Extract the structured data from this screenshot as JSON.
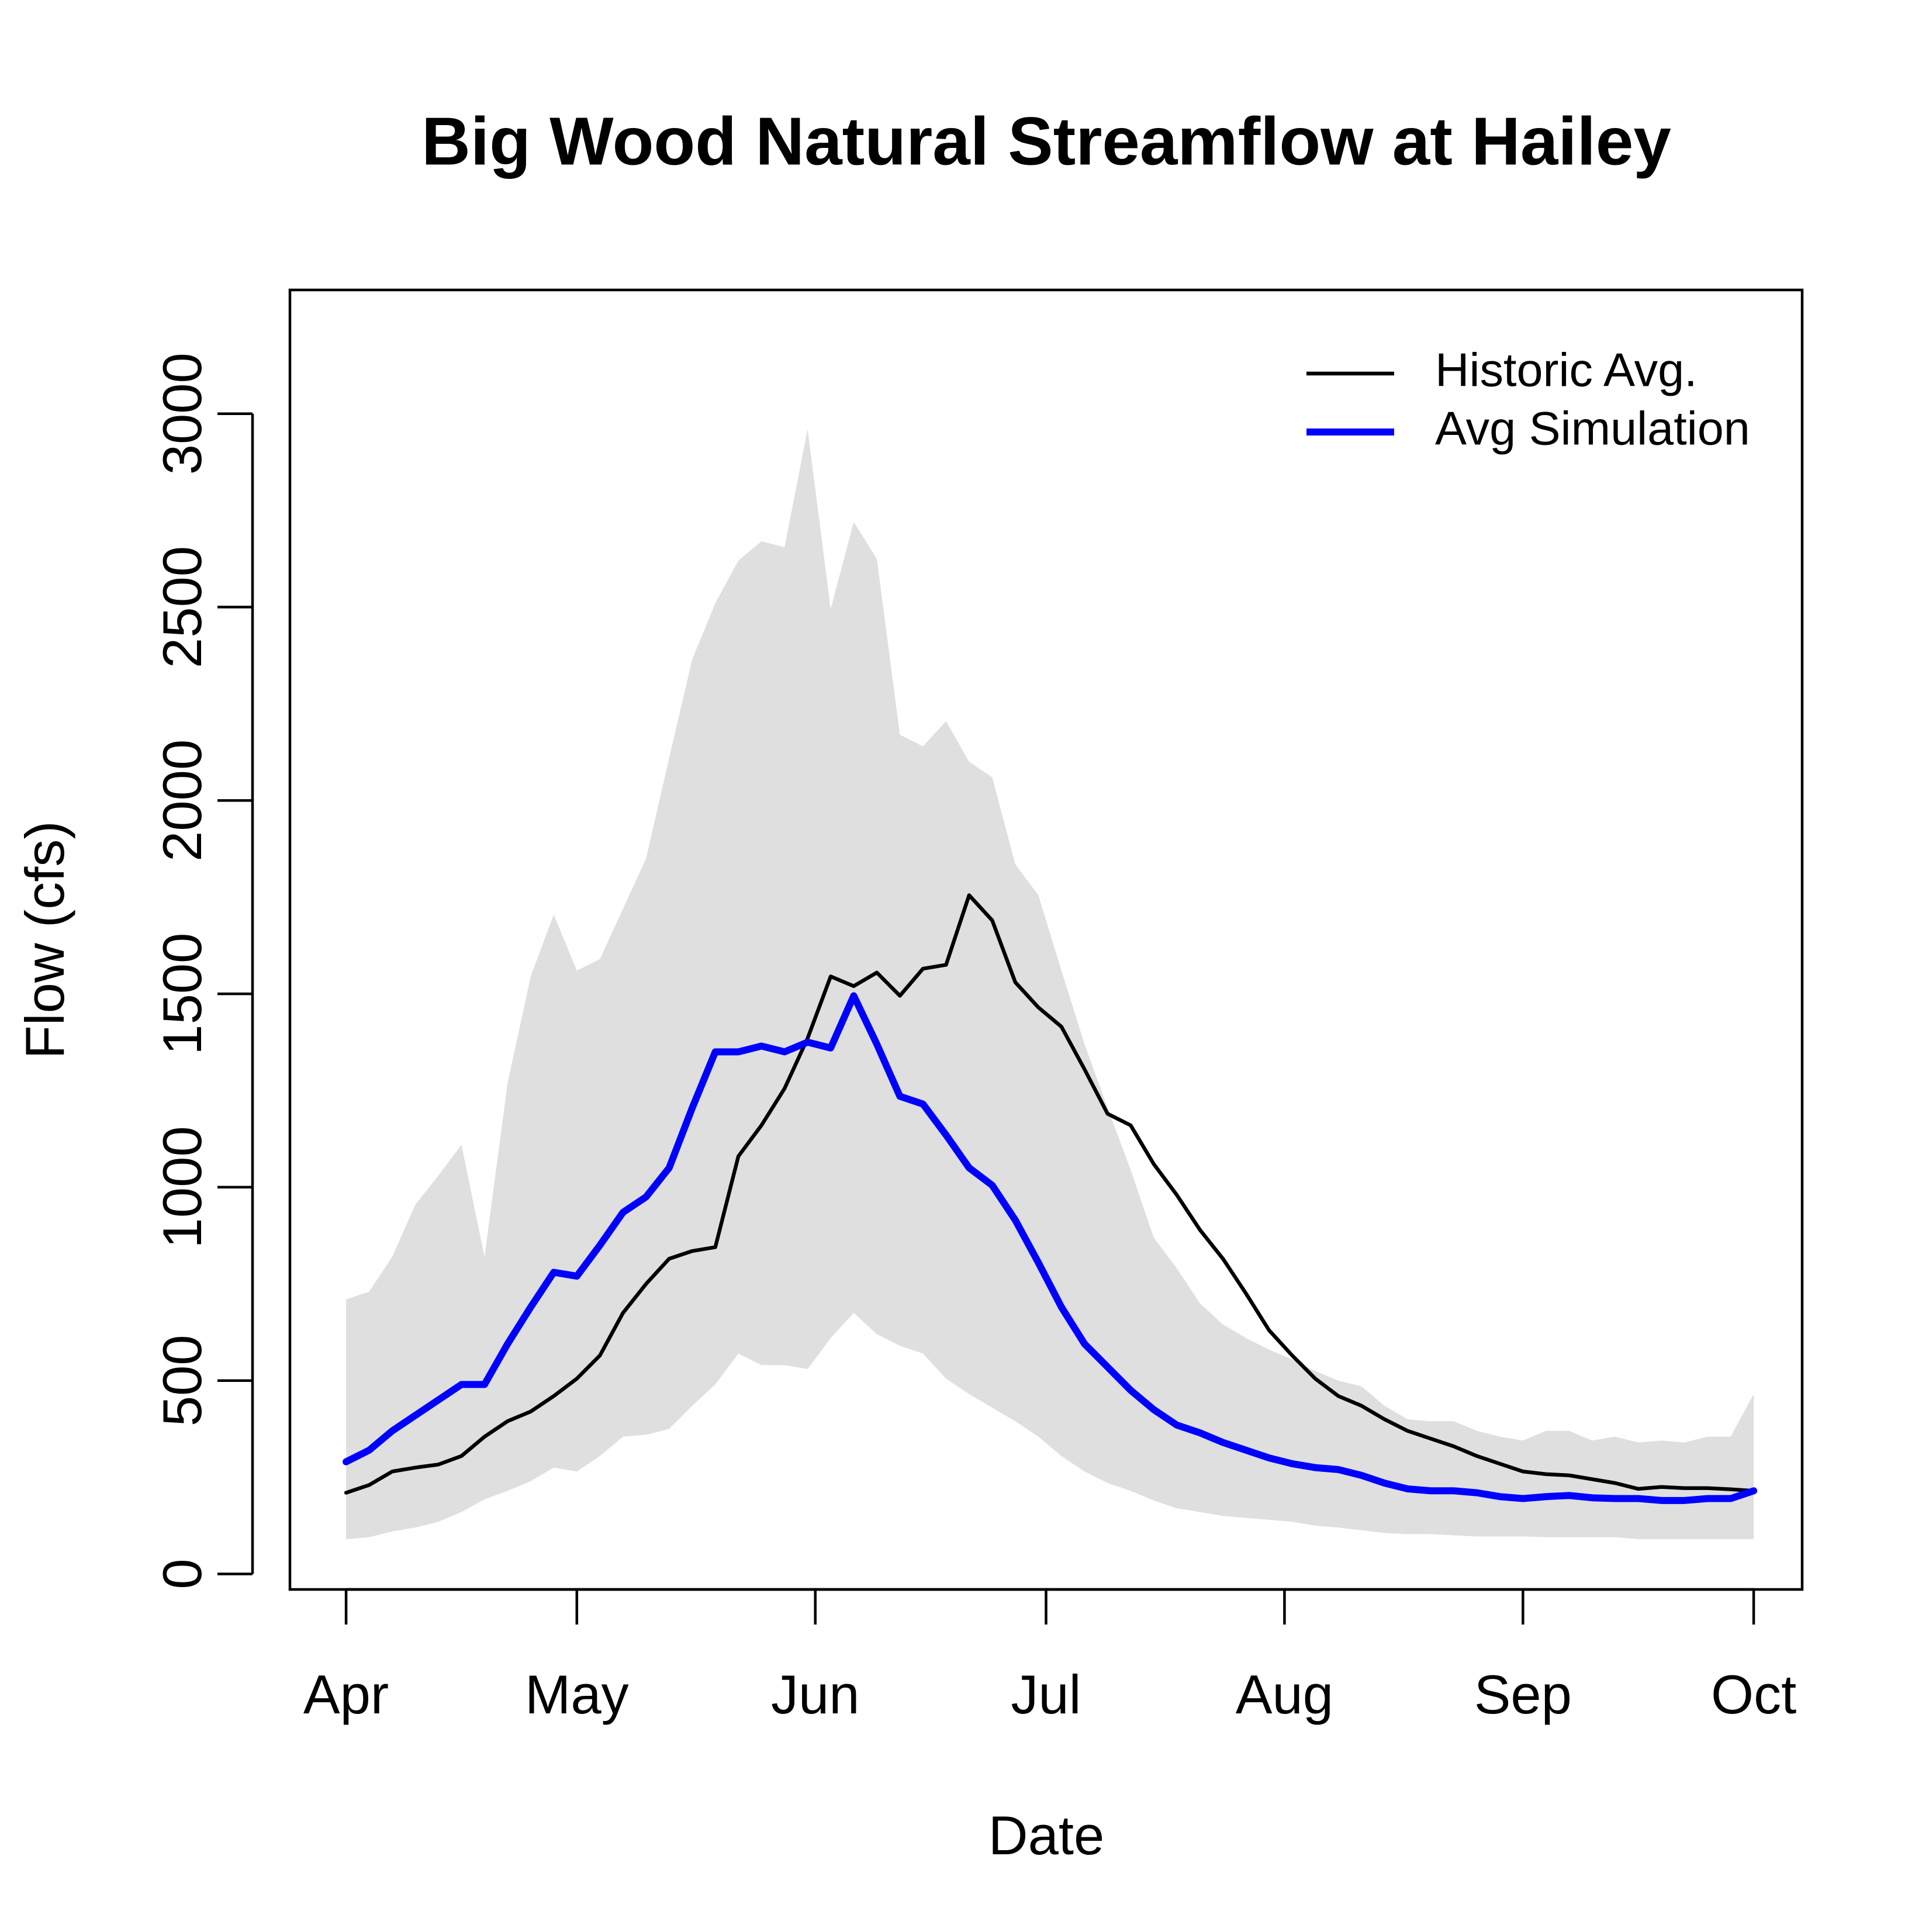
{
  "chart_data": {
    "type": "line",
    "title": "Big Wood Natural Streamflow at Hailey",
    "xlabel": "Date",
    "ylabel": "Flow (cfs)",
    "x": [
      0,
      3,
      6,
      9,
      12,
      15,
      18,
      21,
      24,
      27,
      30,
      33,
      36,
      39,
      42,
      45,
      48,
      51,
      54,
      57,
      60,
      63,
      66,
      69,
      72,
      75,
      78,
      81,
      84,
      87,
      90,
      93,
      96,
      99,
      102,
      105,
      108,
      111,
      114,
      117,
      120,
      123,
      126,
      129,
      132,
      135,
      138,
      141,
      144,
      147,
      150,
      153,
      156,
      159,
      162,
      165,
      168,
      171,
      174,
      177,
      180,
      183
    ],
    "xlim": [
      -7.3,
      189.3
    ],
    "xticks": [
      {
        "value": 0,
        "label": "Apr"
      },
      {
        "value": 30,
        "label": "May"
      },
      {
        "value": 61,
        "label": "Jun"
      },
      {
        "value": 91,
        "label": "Jul"
      },
      {
        "value": 122,
        "label": "Aug"
      },
      {
        "value": 153,
        "label": "Sep"
      },
      {
        "value": 183,
        "label": "Oct"
      }
    ],
    "ylim": [
      -40,
      3320
    ],
    "yticks": [
      0,
      500,
      1000,
      1500,
      2000,
      2500,
      3000
    ],
    "legend": "top-right",
    "band": {
      "color": "#dfdfdf",
      "upper": [
        710,
        730,
        820,
        955,
        1030,
        1110,
        820,
        1270,
        1545,
        1705,
        1560,
        1590,
        1720,
        1850,
        2110,
        2365,
        2510,
        2620,
        2670,
        2655,
        2960,
        2495,
        2720,
        2625,
        2170,
        2140,
        2205,
        2100,
        2060,
        1835,
        1755,
        1560,
        1370,
        1205,
        1045,
        870,
        790,
        700,
        645,
        610,
        580,
        555,
        525,
        500,
        485,
        435,
        400,
        395,
        395,
        370,
        355,
        345,
        370,
        370,
        345,
        355,
        340,
        345,
        340,
        355,
        355,
        465
      ],
      "lower": [
        90,
        95,
        110,
        120,
        135,
        160,
        193,
        215,
        240,
        275,
        265,
        305,
        355,
        360,
        375,
        435,
        490,
        570,
        540,
        540,
        530,
        610,
        675,
        620,
        590,
        570,
        505,
        465,
        430,
        395,
        355,
        305,
        265,
        235,
        215,
        190,
        170,
        160,
        150,
        145,
        140,
        135,
        125,
        120,
        113,
        106,
        103,
        103,
        100,
        97,
        97,
        97,
        95,
        95,
        95,
        95,
        90,
        90,
        90,
        90,
        90,
        90
      ]
    },
    "series": [
      {
        "name": "Historic Avg.",
        "color": "#000000",
        "values": [
          210,
          230,
          265,
          275,
          283,
          305,
          355,
          395,
          420,
          460,
          505,
          565,
          675,
          750,
          815,
          835,
          845,
          1080,
          1160,
          1255,
          1385,
          1545,
          1520,
          1555,
          1495,
          1565,
          1575,
          1755,
          1690,
          1530,
          1465,
          1415,
          1305,
          1190,
          1160,
          1060,
          980,
          890,
          815,
          725,
          630,
          565,
          505,
          460,
          435,
          400,
          370,
          350,
          330,
          305,
          285,
          265,
          258,
          255,
          245,
          235,
          220,
          225,
          222,
          222,
          219,
          215
        ]
      },
      {
        "name": "Avg Simulation",
        "color": "#0000ff",
        "values": [
          290,
          320,
          370,
          410,
          450,
          490,
          490,
          595,
          690,
          780,
          770,
          850,
          935,
          975,
          1050,
          1205,
          1350,
          1350,
          1365,
          1350,
          1375,
          1360,
          1495,
          1370,
          1235,
          1215,
          1135,
          1050,
          1005,
          915,
          805,
          690,
          595,
          535,
          475,
          425,
          385,
          365,
          340,
          320,
          300,
          285,
          275,
          270,
          255,
          235,
          220,
          215,
          215,
          210,
          200,
          195,
          200,
          203,
          197,
          195,
          195,
          190,
          190,
          195,
          195,
          215
        ]
      }
    ]
  }
}
